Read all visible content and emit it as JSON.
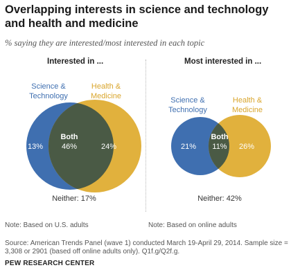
{
  "title": "Overlapping interests in science and technology and health and medicine",
  "subtitle": "% saying they are interested/most interested in each topic",
  "colors": {
    "science": "#3f6fb0",
    "health": "#e1b13d",
    "overlap": "#4a5a45",
    "text_light": "#ffffff",
    "label_sci": "#3f6fb0",
    "label_health": "#d9a52c"
  },
  "chart_data": [
    {
      "type": "venn",
      "title": "Interested in ...",
      "sets": [
        {
          "name": "Science & Technology",
          "only_value": 13,
          "label": "13%"
        },
        {
          "name": "Health & Medicine",
          "only_value": 24,
          "label": "24%"
        }
      ],
      "overlap": {
        "name": "Both",
        "value": 46,
        "label": "46%"
      },
      "neither": {
        "value": 17,
        "label": "Neither: 17%"
      }
    },
    {
      "type": "venn",
      "title": "Most interested in ...",
      "sets": [
        {
          "name": "Science & Technology",
          "only_value": 21,
          "label": "21%"
        },
        {
          "name": "Health & Medicine",
          "only_value": 26,
          "label": "26%"
        }
      ],
      "overlap": {
        "name": "Both",
        "value": 11,
        "label": "11%"
      },
      "neither": {
        "value": 42,
        "label": "Neither: 42%"
      }
    }
  ],
  "labels": {
    "sci_line1": "Science &",
    "sci_line2": "Technology",
    "health_line1": "Health &",
    "health_line2": "Medicine"
  },
  "notes": {
    "left": "Note: Based on U.S. adults",
    "right": "Note: Based on online adults",
    "source": "Source: American Trends Panel (wave 1) conducted March 19-April 29, 2014. Sample size = 3,308 or 2901 (based off online adults only). Q1f.g/Q2f.g."
  },
  "brand": "PEW RESEARCH CENTER"
}
